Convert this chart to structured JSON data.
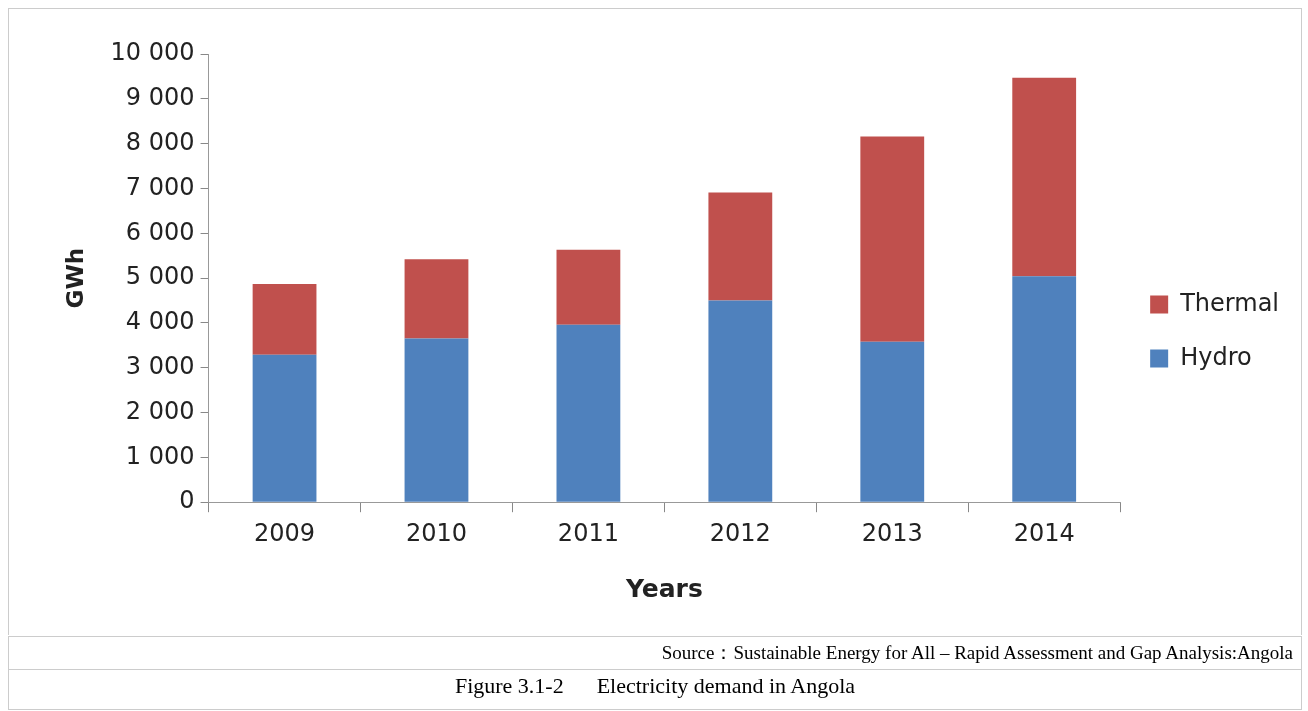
{
  "chart_data": {
    "type": "bar",
    "title": "Figure 3.1-2      Electricity demand in Angola",
    "xlabel": "Years",
    "ylabel": "GWh",
    "annotations": [
      "Source：Sustainable Energy for All – Rapid Assessment and Gap Analysis:Angola"
    ],
    "categories": [
      "2009",
      "2010",
      "2011",
      "2012",
      "2013",
      "2014"
    ],
    "series": [
      {
        "name": "Hydro",
        "color": "#4f81bd",
        "values": [
          3290,
          3650,
          3960,
          4500,
          3580,
          5040
        ]
      },
      {
        "name": "Thermal",
        "color": "#c0504d",
        "values": [
          1580,
          1770,
          1670,
          2410,
          4580,
          4430
        ]
      }
    ],
    "stacked": true,
    "ylim": [
      0,
      10000
    ],
    "yticks": [
      0,
      {
        "value": 1000,
        "label": "1 000"
      },
      {
        "value": 2000,
        "label": "2 000"
      },
      {
        "value": 3000,
        "label": "3 000"
      },
      {
        "value": 4000,
        "label": "4 000"
      },
      {
        "value": 5000,
        "label": "5 000"
      },
      {
        "value": 6000,
        "label": "6 000"
      },
      {
        "value": 7000,
        "label": "7 000"
      },
      {
        "value": 8000,
        "label": "8 000"
      },
      {
        "value": 9000,
        "label": "9 000"
      },
      {
        "value": 10000,
        "label": "10 000"
      }
    ],
    "grid": false,
    "legend": "right"
  }
}
